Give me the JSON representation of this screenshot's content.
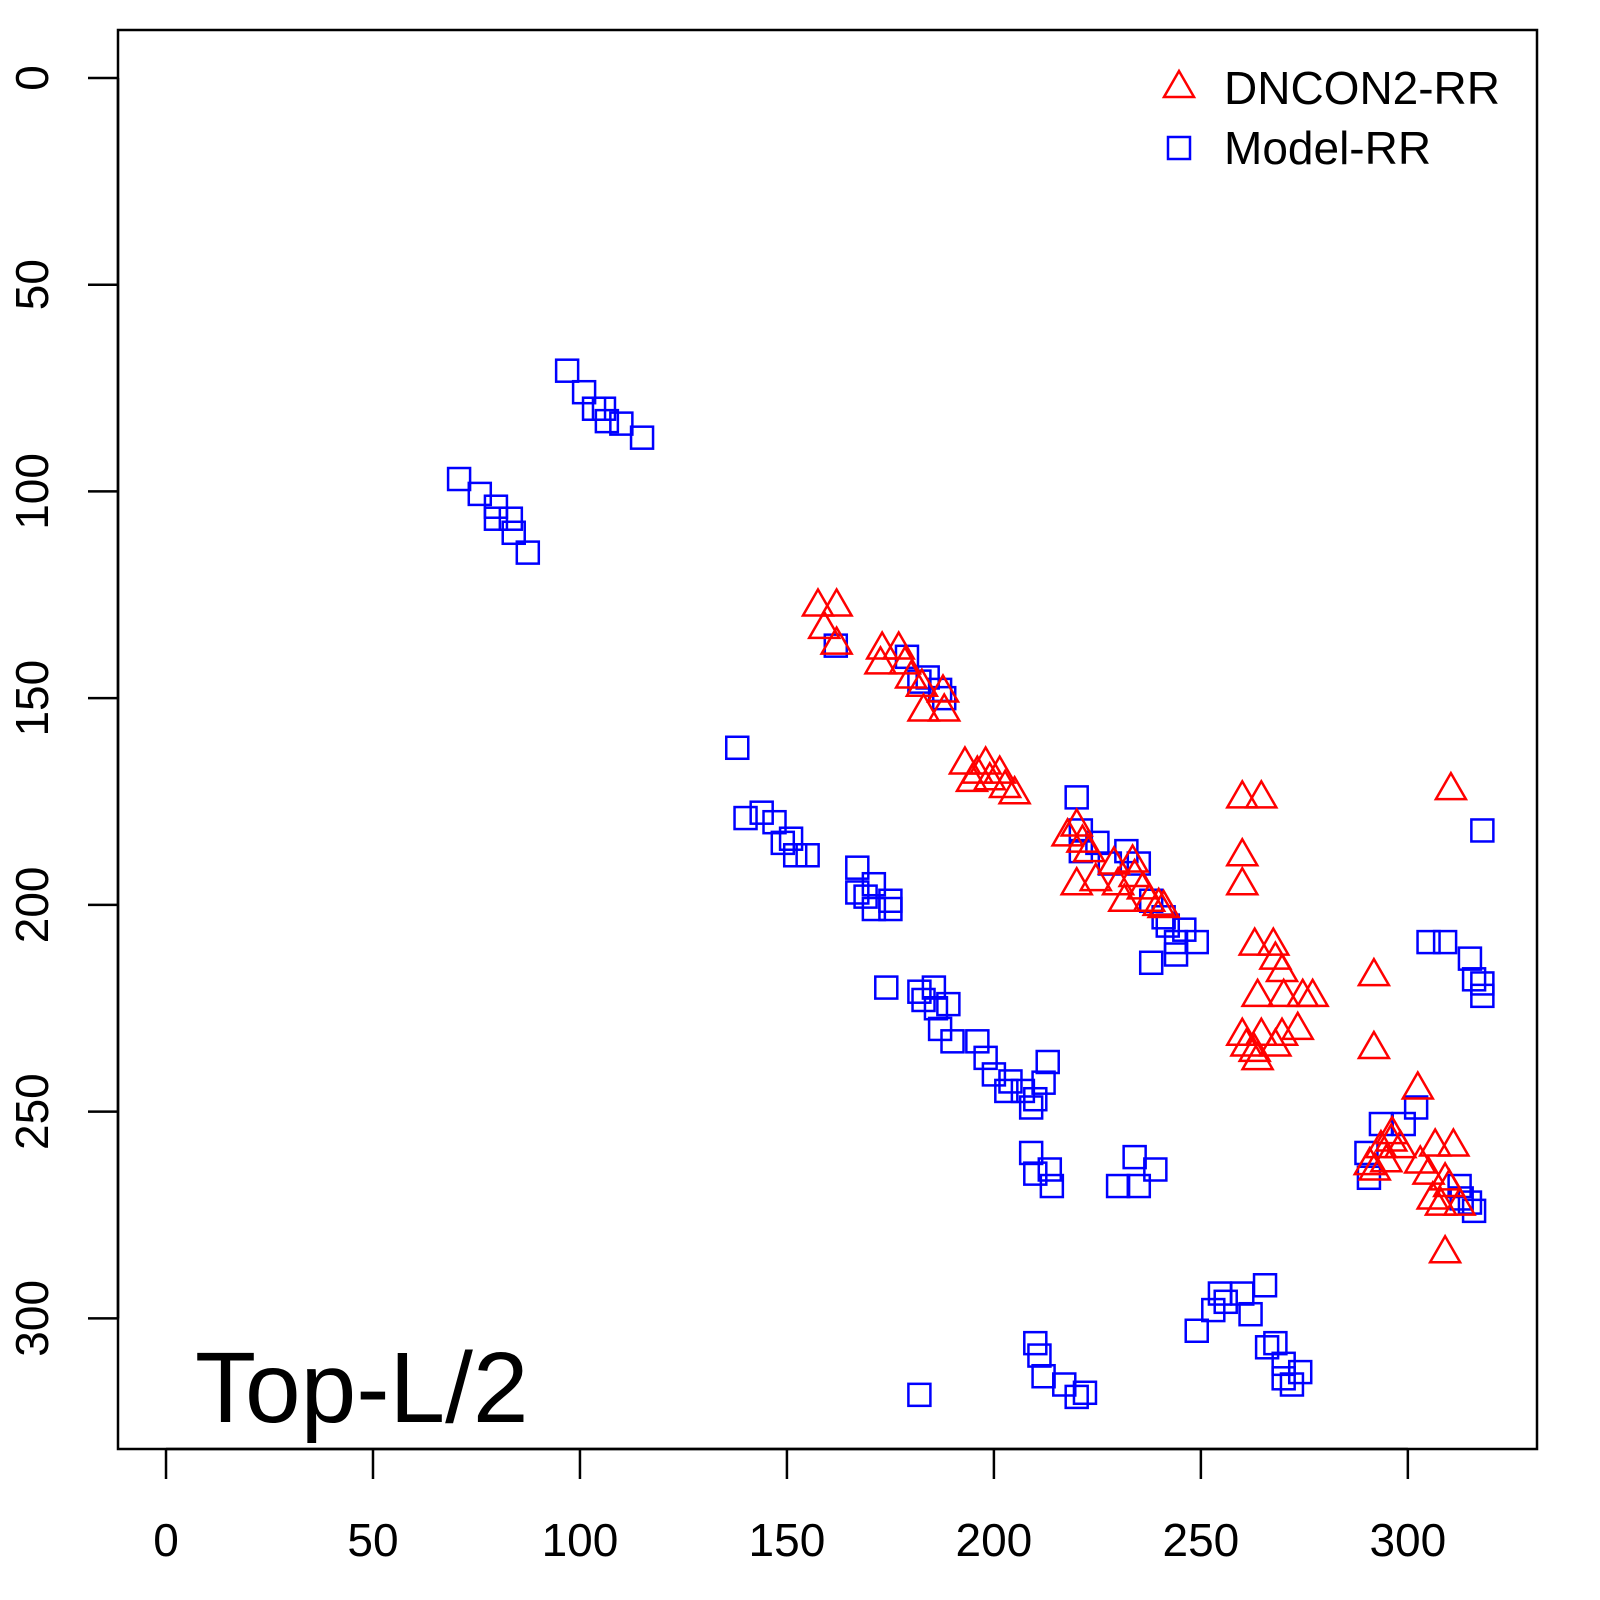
{
  "chart_data": {
    "type": "scatter",
    "title": "",
    "annotation": "Top-L/2",
    "xlabel": "",
    "ylabel": "",
    "xlim": [
      -11.6,
      331.2
    ],
    "ylim": [
      -11.6,
      331.6
    ],
    "y_inverted": true,
    "grid": false,
    "legend_position": "top-right",
    "x_ticks": [
      "0",
      "50",
      "100",
      "150",
      "200",
      "250",
      "300"
    ],
    "y_ticks": [
      "0",
      "50",
      "100",
      "150",
      "200",
      "250",
      "300"
    ],
    "colors": {
      "dncon2": "#ff0000",
      "model": "#0000ff"
    },
    "series": [
      {
        "name": "DNCON2-RR",
        "marker": "triangle",
        "points": [
          [
            157.5,
            127.6
          ],
          [
            162,
            127.6
          ],
          [
            159,
            133
          ],
          [
            162,
            136.8
          ],
          [
            173,
            138
          ],
          [
            172.6,
            141.6
          ],
          [
            177,
            138
          ],
          [
            178.5,
            141.6
          ],
          [
            180,
            145
          ],
          [
            182.6,
            147
          ],
          [
            187.7,
            148.4
          ],
          [
            183,
            153
          ],
          [
            188,
            153
          ],
          [
            193,
            165.8
          ],
          [
            198,
            165.8
          ],
          [
            199,
            169.6
          ],
          [
            202.7,
            171.5
          ],
          [
            194.7,
            170
          ],
          [
            201.4,
            168
          ],
          [
            196,
            168
          ],
          [
            205,
            173
          ],
          [
            220,
            180.8
          ],
          [
            221.4,
            184.7
          ],
          [
            217.8,
            183.2
          ],
          [
            220,
            195
          ],
          [
            224.6,
            194
          ],
          [
            223,
            187
          ],
          [
            229,
            190
          ],
          [
            233.5,
            189.5
          ],
          [
            231.5,
            199
          ],
          [
            236,
            196
          ],
          [
            237.5,
            199
          ],
          [
            239.8,
            200
          ],
          [
            241,
            200.5
          ],
          [
            230,
            195
          ],
          [
            234,
            193
          ],
          [
            260,
            174
          ],
          [
            264.6,
            174
          ],
          [
            260,
            188
          ],
          [
            260,
            195
          ],
          [
            263,
            209.6
          ],
          [
            267.5,
            209.6
          ],
          [
            269.6,
            216
          ],
          [
            274.6,
            222
          ],
          [
            270,
            222
          ],
          [
            263.7,
            222
          ],
          [
            268,
            213
          ],
          [
            277,
            222
          ],
          [
            260,
            231.4
          ],
          [
            264.6,
            231.4
          ],
          [
            269.6,
            231.4
          ],
          [
            273.4,
            230
          ],
          [
            263,
            235.3
          ],
          [
            263.7,
            237.3
          ],
          [
            261,
            234
          ],
          [
            268,
            234
          ],
          [
            291.8,
            217
          ],
          [
            291.8,
            234.6
          ],
          [
            302.4,
            244.4
          ],
          [
            310.4,
            172
          ],
          [
            290.8,
            262.7
          ],
          [
            293.5,
            258.6
          ],
          [
            296.2,
            255.2
          ],
          [
            298.2,
            258.6
          ],
          [
            294.8,
            262
          ],
          [
            292,
            264
          ],
          [
            296,
            257
          ],
          [
            303,
            262.3
          ],
          [
            306.6,
            258.2
          ],
          [
            311,
            258.2
          ],
          [
            309,
            266.4
          ],
          [
            308,
            272.5
          ],
          [
            309,
            284
          ],
          [
            306,
            271
          ],
          [
            312.5,
            272.5
          ],
          [
            305,
            265
          ],
          [
            310,
            268
          ]
        ]
      },
      {
        "name": "Model-RR",
        "marker": "square",
        "points": [
          [
            96.9,
            70.8
          ],
          [
            101,
            76
          ],
          [
            103.4,
            80
          ],
          [
            105.8,
            80
          ],
          [
            106.5,
            83
          ],
          [
            110,
            83.6
          ],
          [
            115,
            87
          ],
          [
            70.8,
            97
          ],
          [
            75.8,
            100.6
          ],
          [
            79.7,
            103.7
          ],
          [
            79.7,
            106.6
          ],
          [
            83.3,
            106.6
          ],
          [
            84,
            110
          ],
          [
            87.4,
            114.8
          ],
          [
            161.8,
            137.3
          ],
          [
            179,
            140
          ],
          [
            184,
            145
          ],
          [
            187,
            148
          ],
          [
            188,
            150
          ],
          [
            182,
            146
          ],
          [
            138,
            162
          ],
          [
            140,
            179
          ],
          [
            143.9,
            177.7
          ],
          [
            147,
            180
          ],
          [
            151,
            184
          ],
          [
            155,
            188
          ],
          [
            149,
            185
          ],
          [
            152,
            188
          ],
          [
            167,
            191
          ],
          [
            167,
            197
          ],
          [
            171,
            195
          ],
          [
            171,
            201
          ],
          [
            175,
            199
          ],
          [
            175,
            201
          ],
          [
            169,
            198
          ],
          [
            174,
            220
          ],
          [
            182,
            221
          ],
          [
            185.5,
            220
          ],
          [
            189,
            224
          ],
          [
            187,
            230
          ],
          [
            190,
            233
          ],
          [
            186,
            225
          ],
          [
            183,
            223
          ],
          [
            196,
            233
          ],
          [
            198,
            237
          ],
          [
            200,
            241
          ],
          [
            204,
            242.7
          ],
          [
            207,
            245
          ],
          [
            210,
            247
          ],
          [
            213,
            238
          ],
          [
            212,
            243
          ],
          [
            203,
            245
          ],
          [
            209,
            249
          ],
          [
            220,
            174
          ],
          [
            221,
            182
          ],
          [
            221,
            187
          ],
          [
            225,
            185
          ],
          [
            228,
            190
          ],
          [
            232,
            187
          ],
          [
            235,
            190
          ],
          [
            238,
            199
          ],
          [
            241,
            203
          ],
          [
            244,
            209
          ],
          [
            238,
            214
          ],
          [
            246,
            206
          ],
          [
            249,
            209
          ],
          [
            244,
            212
          ],
          [
            242,
            205
          ],
          [
            209,
            260
          ],
          [
            210,
            265
          ],
          [
            213.5,
            264
          ],
          [
            214,
            268
          ],
          [
            230,
            268
          ],
          [
            234,
            261
          ],
          [
            239,
            264
          ],
          [
            235,
            268
          ],
          [
            249,
            303
          ],
          [
            253,
            298
          ],
          [
            254.6,
            294
          ],
          [
            260,
            294
          ],
          [
            265.5,
            292
          ],
          [
            262,
            299
          ],
          [
            256,
            296
          ],
          [
            210,
            306
          ],
          [
            212,
            314
          ],
          [
            217,
            316
          ],
          [
            222,
            318
          ],
          [
            182,
            318.5
          ],
          [
            220,
            319
          ],
          [
            211,
            309
          ],
          [
            268,
            306
          ],
          [
            270,
            311
          ],
          [
            274,
            313
          ],
          [
            270,
            314.5
          ],
          [
            266,
            307
          ],
          [
            272,
            316
          ],
          [
            305,
            209
          ],
          [
            309,
            209
          ],
          [
            315,
            213
          ],
          [
            318,
            219
          ],
          [
            318,
            182
          ],
          [
            318,
            222
          ],
          [
            316,
            218
          ],
          [
            290,
            260
          ],
          [
            293.5,
            253
          ],
          [
            299,
            253
          ],
          [
            302,
            249
          ],
          [
            290.6,
            266
          ],
          [
            312.5,
            268
          ],
          [
            315,
            272
          ],
          [
            316,
            274
          ],
          [
            313,
            271
          ]
        ]
      }
    ]
  }
}
